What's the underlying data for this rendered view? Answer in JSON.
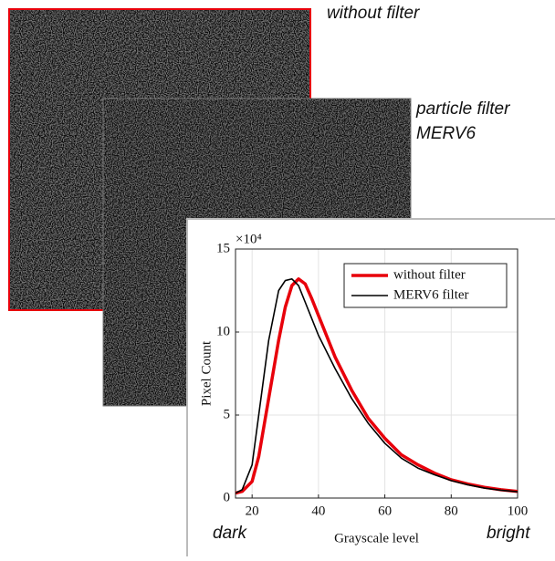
{
  "image_labels": {
    "first": "without filter",
    "second_line1": "particle filter",
    "second_line2": "MERV6",
    "dark": "dark",
    "bright": "bright"
  },
  "chart_data": {
    "type": "line",
    "x_label": "Grayscale level",
    "y_label": "Pixel Count",
    "y_exponent": "×10⁴",
    "x": [
      15,
      17,
      20,
      22,
      25,
      28,
      30,
      32,
      34,
      36,
      38,
      40,
      45,
      50,
      55,
      60,
      65,
      70,
      75,
      80,
      85,
      90,
      95,
      100
    ],
    "series": [
      {
        "name": "without filter",
        "color": "#e8000b",
        "width": 3.5,
        "values": [
          0.3,
          0.4,
          1.0,
          2.5,
          6.0,
          9.5,
          11.5,
          12.8,
          13.2,
          12.9,
          12.0,
          11.0,
          8.5,
          6.5,
          4.8,
          3.6,
          2.6,
          2.0,
          1.5,
          1.1,
          0.85,
          0.65,
          0.5,
          0.4
        ]
      },
      {
        "name": "MERV6 filter",
        "color": "#000000",
        "width": 1.6,
        "values": [
          0.3,
          0.5,
          2.0,
          5.0,
          9.5,
          12.5,
          13.1,
          13.2,
          12.8,
          11.8,
          10.8,
          9.8,
          7.8,
          6.0,
          4.5,
          3.3,
          2.4,
          1.8,
          1.4,
          1.05,
          0.8,
          0.6,
          0.47,
          0.38
        ]
      }
    ],
    "xlim": [
      15,
      100
    ],
    "ylim": [
      0,
      15
    ],
    "xticks": [
      20,
      40,
      60,
      80,
      100
    ],
    "yticks": [
      0,
      5,
      10,
      15
    ],
    "grid": true,
    "legend": "top-right"
  }
}
